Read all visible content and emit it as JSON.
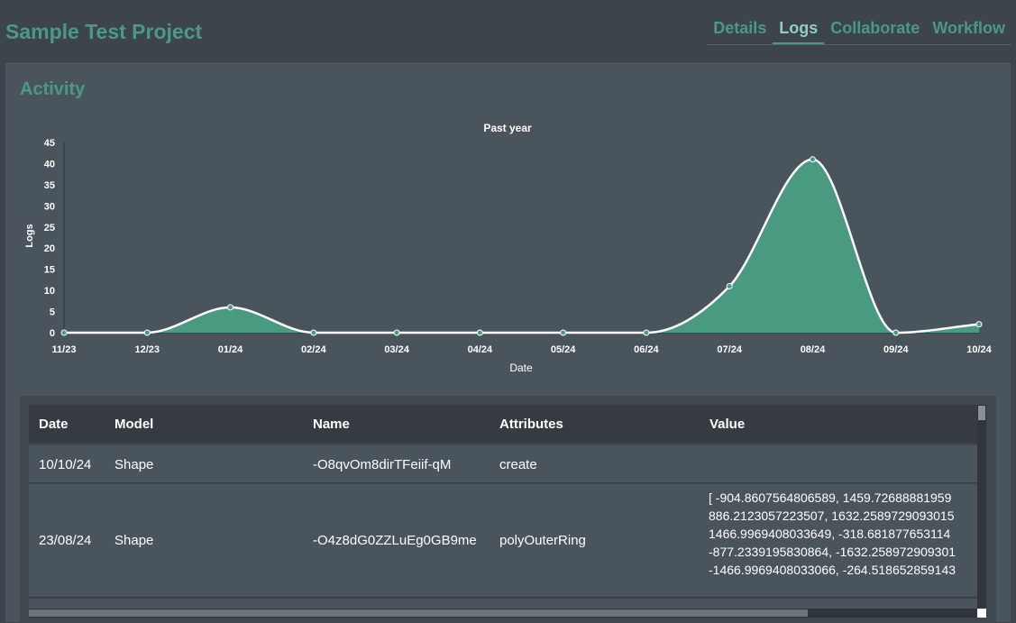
{
  "header": {
    "title": "Sample Test Project",
    "tabs": [
      {
        "label": "Details",
        "active": false
      },
      {
        "label": "Logs",
        "active": true
      },
      {
        "label": "Collaborate",
        "active": false
      },
      {
        "label": "Workflow",
        "active": false
      }
    ]
  },
  "activity": {
    "title": "Activity"
  },
  "chart_data": {
    "type": "area",
    "title": "Past year",
    "xlabel": "Date",
    "ylabel": "Logs",
    "categories": [
      "11/23",
      "12/23",
      "01/24",
      "02/24",
      "03/24",
      "04/24",
      "05/24",
      "06/24",
      "07/24",
      "08/24",
      "09/24",
      "10/24"
    ],
    "series": [
      {
        "name": "",
        "values": [
          0,
          0,
          6,
          0,
          0,
          0,
          0,
          0,
          11,
          41,
          0,
          2
        ]
      }
    ],
    "ylim": [
      0,
      45
    ],
    "yticks": [
      0,
      5,
      10,
      15,
      20,
      25,
      30,
      35,
      40,
      45
    ],
    "grid": false,
    "legend": "none",
    "colors": {
      "fill": "#4a9a82",
      "line": "#ffffff",
      "point": "#4a9a82"
    }
  },
  "table": {
    "columns": [
      "Date",
      "Model",
      "Name",
      "Attributes",
      "Value"
    ],
    "rows": [
      {
        "date": "10/10/24",
        "model": "Shape",
        "name": "-O8qvOm8dirTFeiif-qM",
        "attributes": "create",
        "value_lines": []
      },
      {
        "date": "23/08/24",
        "model": "Shape",
        "name": "-O4z8dG0ZZLuEg0GB9me",
        "attributes": "polyOuterRing",
        "value_lines": [
          "[ -904.8607564806589, 1459.72688881959",
          "886.2123057223507, 1632.2589729093015",
          "1466.9969408033649, -318.681877653114",
          "-877.2339195830864, -1632.258972909301",
          "-1466.9969408033066, -264.518652859143"
        ]
      }
    ]
  },
  "colors": {
    "accent": "#4a9a82",
    "background": "#3d444b",
    "panel": "#4a545d"
  }
}
